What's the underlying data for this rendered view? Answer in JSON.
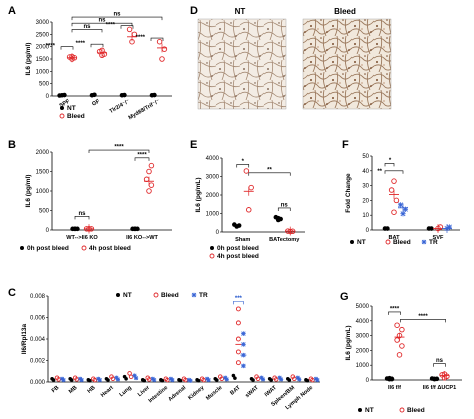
{
  "colors": {
    "nt": "#000000",
    "bleed": "#e0282a",
    "tr": "#3a66d6"
  },
  "panels": {
    "A": {
      "label": "A",
      "ylabel": "IL6 (pg/ml)",
      "yticks": [
        "0",
        "500",
        "1000",
        "1500",
        "2000",
        "2500",
        "3000"
      ],
      "ylim": [
        0,
        3000
      ],
      "categories": [
        "SPF",
        "GF",
        "Tlr2/4⁻/⁻",
        "Myd88/Trif⁻/⁻"
      ],
      "legend": [
        "NT",
        "Bleed"
      ],
      "series": [
        {
          "key": "nt",
          "points": [
            [
              0,
              30
            ],
            [
              0,
              40
            ],
            [
              0,
              20
            ],
            [
              1,
              30
            ],
            [
              1,
              50
            ],
            [
              2,
              30
            ],
            [
              2,
              40
            ],
            [
              3,
              30
            ],
            [
              3,
              40
            ]
          ]
        },
        {
          "key": "bleed",
          "means": [
            1550,
            1750,
            2400,
            1950
          ],
          "points": [
            [
              0,
              1500
            ],
            [
              0,
              1550
            ],
            [
              0,
              1580
            ],
            [
              0,
              1600
            ],
            [
              1,
              1650
            ],
            [
              1,
              1700
            ],
            [
              1,
              1800
            ],
            [
              1,
              1850
            ],
            [
              2,
              2200
            ],
            [
              2,
              2500
            ],
            [
              2,
              2700
            ],
            [
              3,
              1500
            ],
            [
              3,
              1900
            ],
            [
              3,
              2200
            ]
          ]
        }
      ],
      "sig": [
        "****",
        "****",
        "****",
        "****",
        "ns",
        "ns",
        "ns"
      ]
    },
    "D": {
      "label": "D",
      "titles": [
        "NT",
        "Bleed"
      ]
    },
    "B": {
      "label": "B",
      "ylabel": "IL6 (pg/ml)",
      "yticks": [
        "0",
        "500",
        "1000",
        "1500",
        "2000"
      ],
      "ylim": [
        0,
        2000
      ],
      "categories": [
        "WT-->Il6 KO",
        "Il6 KO-->WT"
      ],
      "legend": [
        "0h post bleed",
        "4h post bleed"
      ],
      "series": [
        {
          "key": "nt",
          "points": [
            [
              0,
              30
            ],
            [
              0,
              30
            ],
            [
              0,
              30
            ],
            [
              0,
              30
            ],
            [
              1,
              30
            ],
            [
              1,
              30
            ],
            [
              1,
              30
            ],
            [
              1,
              30
            ]
          ]
        },
        {
          "key": "bleed",
          "means": [
            30,
            1250
          ],
          "points": [
            [
              0,
              30
            ],
            [
              0,
              30
            ],
            [
              0,
              30
            ],
            [
              0,
              30
            ],
            [
              1,
              1000
            ],
            [
              1,
              1150
            ],
            [
              1,
              1300
            ],
            [
              1,
              1500
            ],
            [
              1,
              1650
            ]
          ]
        }
      ],
      "sig": [
        "ns",
        "****",
        "****"
      ]
    },
    "E": {
      "label": "E",
      "ylabel": "IL6 (pg/mL)",
      "yticks": [
        "0",
        "1000",
        "2000",
        "3000",
        "4000"
      ],
      "ylim": [
        0,
        4000
      ],
      "categories": [
        "Sham",
        "BATectomy"
      ],
      "legend": [
        "0h post bleed",
        "4h post bleed"
      ],
      "series": [
        {
          "key": "nt",
          "points": [
            [
              0,
              300
            ],
            [
              0,
              350
            ],
            [
              0,
              400
            ],
            [
              1,
              650
            ],
            [
              1,
              700
            ],
            [
              1,
              800
            ],
            [
              1,
              750
            ]
          ]
        },
        {
          "key": "bleed",
          "means": [
            2200,
            50
          ],
          "points": [
            [
              0,
              1200
            ],
            [
              0,
              2400
            ],
            [
              0,
              3300
            ],
            [
              1,
              30
            ],
            [
              1,
              40
            ],
            [
              1,
              50
            ]
          ]
        }
      ],
      "sig": [
        "*",
        "**",
        "ns"
      ]
    },
    "F": {
      "label": "F",
      "ylabel": "Fold Change",
      "yticks": [
        "0",
        "10",
        "20",
        "30",
        "40",
        "50"
      ],
      "ylim": [
        0,
        50
      ],
      "categories": [
        "BAT",
        "SVF"
      ],
      "legend": [
        "NT",
        "Bleed",
        "TR"
      ],
      "series": [
        {
          "key": "nt",
          "points": [
            [
              0,
              1
            ],
            [
              0,
              1
            ],
            [
              1,
              1
            ],
            [
              1,
              1
            ]
          ]
        },
        {
          "key": "bleed",
          "means": [
            24,
            1
          ],
          "points": [
            [
              0,
              12
            ],
            [
              0,
              20
            ],
            [
              0,
              27
            ],
            [
              0,
              33
            ],
            [
              1,
              1
            ],
            [
              1,
              2
            ]
          ]
        },
        {
          "key": "tr",
          "means": [
            15,
            1
          ],
          "points": [
            [
              0,
              11
            ],
            [
              0,
              14
            ],
            [
              0,
              17
            ],
            [
              1,
              1
            ],
            [
              1,
              2
            ]
          ]
        }
      ],
      "sig": [
        "*",
        "**"
      ]
    },
    "C": {
      "label": "C",
      "ylabel": "Il6/Rpl13a",
      "yticks": [
        "0.000",
        "0.002",
        "0.004",
        "0.006",
        "0.008"
      ],
      "ylim": [
        0,
        0.008
      ],
      "categories": [
        "FB",
        "MB",
        "HB",
        "Heart",
        "Lung",
        "Liver",
        "Intestine",
        "Adrenal",
        "Kidney",
        "Muscle",
        "BAT",
        "sWAT",
        "iWAT",
        "Spleen/BM",
        "Lymph Node"
      ],
      "legend": [
        "NT",
        "Bleed",
        "TR"
      ],
      "nt_vals": [
        0.0003,
        0.0003,
        0.0002,
        0.0003,
        0.0005,
        0.0002,
        0.0002,
        0.0002,
        0.0002,
        0.0003,
        0.0006,
        0.0003,
        0.0003,
        0.0003,
        0.0002
      ],
      "bleed_vals": [
        0.0004,
        0.0004,
        0.0003,
        0.0005,
        0.0008,
        0.0004,
        0.0003,
        0.0003,
        0.0003,
        0.0005,
        0.0035,
        0.0005,
        0.0004,
        0.0005,
        0.0003
      ],
      "tr_vals": [
        0.0003,
        0.0003,
        0.0003,
        0.0004,
        0.0006,
        0.0003,
        0.0003,
        0.0002,
        0.0003,
        0.0004,
        0.0025,
        0.0004,
        0.0004,
        0.0004,
        0.0003
      ],
      "bat_bleed_points": [
        0.0068,
        0.0055,
        0.004,
        0.0028,
        0.0018
      ],
      "bat_tr_points": [
        0.0045,
        0.0035,
        0.0025,
        0.0015
      ],
      "sig": [
        "***"
      ]
    },
    "G": {
      "label": "G",
      "ylabel": "IL6 (pg/mL)",
      "yticks": [
        "0",
        "1000",
        "2000",
        "3000",
        "4000",
        "5000"
      ],
      "ylim": [
        0,
        5000
      ],
      "categories": [
        "Il6 f/f",
        "Il6 f/f ΔUCP1"
      ],
      "legend": [
        "NT",
        "Bleed"
      ],
      "series": [
        {
          "key": "nt",
          "points": [
            [
              0,
              50
            ],
            [
              0,
              80
            ],
            [
              0,
              100
            ],
            [
              0,
              120
            ],
            [
              0,
              60
            ],
            [
              1,
              60
            ],
            [
              1,
              80
            ],
            [
              1,
              100
            ],
            [
              1,
              70
            ]
          ]
        },
        {
          "key": "bleed",
          "means": [
            2900,
            300
          ],
          "points": [
            [
              0,
              1700
            ],
            [
              0,
              2300
            ],
            [
              0,
              2700
            ],
            [
              0,
              3000
            ],
            [
              0,
              3400
            ],
            [
              0,
              3700
            ],
            [
              1,
              150
            ],
            [
              1,
              250
            ],
            [
              1,
              350
            ],
            [
              1,
              400
            ]
          ]
        }
      ],
      "sig": [
        "****",
        "****",
        "ns"
      ]
    }
  }
}
